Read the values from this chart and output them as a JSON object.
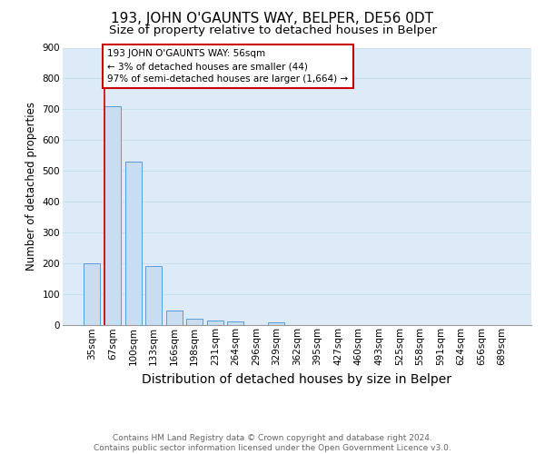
{
  "title": "193, JOHN O'GAUNTS WAY, BELPER, DE56 0DT",
  "subtitle": "Size of property relative to detached houses in Belper",
  "xlabel": "Distribution of detached houses by size in Belper",
  "ylabel": "Number of detached properties",
  "categories": [
    "35sqm",
    "67sqm",
    "100sqm",
    "133sqm",
    "166sqm",
    "198sqm",
    "231sqm",
    "264sqm",
    "296sqm",
    "329sqm",
    "362sqm",
    "395sqm",
    "427sqm",
    "460sqm",
    "493sqm",
    "525sqm",
    "558sqm",
    "591sqm",
    "624sqm",
    "656sqm",
    "689sqm"
  ],
  "values": [
    200,
    710,
    530,
    190,
    45,
    18,
    13,
    10,
    0,
    8,
    0,
    0,
    0,
    0,
    0,
    0,
    0,
    0,
    0,
    0,
    0
  ],
  "bar_color": "#c9ddf0",
  "bar_edge_color": "#5b9bd5",
  "grid_color": "#c8dff0",
  "background_color": "#ddeaf7",
  "annotation_text": "193 JOHN O'GAUNTS WAY: 56sqm\n← 3% of detached houses are smaller (44)\n97% of semi-detached houses are larger (1,664) →",
  "annotation_box_color": "#cc0000",
  "ylim": [
    0,
    900
  ],
  "yticks": [
    0,
    100,
    200,
    300,
    400,
    500,
    600,
    700,
    800,
    900
  ],
  "footer": "Contains HM Land Registry data © Crown copyright and database right 2024.\nContains public sector information licensed under the Open Government Licence v3.0.",
  "title_fontsize": 11,
  "subtitle_fontsize": 9.5,
  "xlabel_fontsize": 10,
  "ylabel_fontsize": 8.5,
  "tick_fontsize": 7.5,
  "footer_fontsize": 6.5
}
